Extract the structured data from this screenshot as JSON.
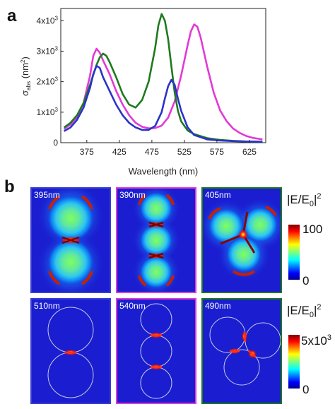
{
  "panel_a": {
    "label": "a",
    "chart_data": {
      "type": "line",
      "xlabel": "Wavelength (nm)",
      "ylabel_main": "σ",
      "ylabel_sub": "abs",
      "ylabel_unit_open": " (nm",
      "ylabel_unit_sup": "2",
      "ylabel_unit_close": ")",
      "xlim": [
        335,
        650
      ],
      "ylim": [
        0,
        4400
      ],
      "xticks": [
        "375",
        "425",
        "475",
        "525",
        "575",
        "625"
      ],
      "xtick_values": [
        375,
        425,
        475,
        525,
        575,
        625
      ],
      "yticks": [
        {
          "value": 0,
          "text": "0",
          "sup": ""
        },
        {
          "value": 1000,
          "text": "1x10",
          "sup": "3"
        },
        {
          "value": 2000,
          "text": "2x10",
          "sup": "3"
        },
        {
          "value": 3000,
          "text": "3x10",
          "sup": "3"
        },
        {
          "value": 4000,
          "text": "4x10",
          "sup": "3"
        }
      ],
      "series": [
        {
          "color": "#e339d6",
          "x": [
            340,
            350,
            360,
            370,
            380,
            385,
            390,
            395,
            400,
            410,
            420,
            430,
            440,
            450,
            460,
            470,
            480,
            490,
            500,
            510,
            520,
            530,
            535,
            540,
            545,
            550,
            560,
            570,
            580,
            590,
            600,
            610,
            620,
            630,
            645
          ],
          "y": [
            450,
            600,
            850,
            1300,
            2200,
            2850,
            3080,
            2950,
            2700,
            2250,
            1700,
            1250,
            900,
            650,
            520,
            470,
            480,
            560,
            820,
            1350,
            2200,
            3200,
            3650,
            3880,
            3800,
            3450,
            2500,
            1650,
            1050,
            700,
            460,
            320,
            220,
            160,
            110
          ]
        },
        {
          "color": "#1e7a1e",
          "x": [
            340,
            350,
            360,
            370,
            380,
            390,
            395,
            400,
            405,
            410,
            420,
            430,
            440,
            450,
            460,
            470,
            480,
            485,
            490,
            495,
            500,
            505,
            510,
            515,
            520,
            530,
            540,
            560,
            580,
            600,
            620,
            645
          ],
          "y": [
            500,
            650,
            900,
            1300,
            1900,
            2550,
            2800,
            2920,
            2850,
            2650,
            2150,
            1600,
            1250,
            1150,
            1400,
            2000,
            3100,
            3850,
            4220,
            4000,
            3400,
            2500,
            1650,
            1050,
            700,
            400,
            280,
            150,
            90,
            60,
            40,
            30
          ]
        },
        {
          "color": "#2a33c9",
          "x": [
            340,
            350,
            360,
            370,
            380,
            385,
            390,
            395,
            400,
            410,
            420,
            430,
            440,
            450,
            460,
            470,
            480,
            490,
            495,
            500,
            505,
            510,
            515,
            520,
            530,
            540,
            560,
            580,
            600,
            620,
            645
          ],
          "y": [
            380,
            500,
            750,
            1150,
            1800,
            2250,
            2520,
            2450,
            2150,
            1700,
            1250,
            900,
            650,
            500,
            420,
            420,
            550,
            1000,
            1450,
            1850,
            2060,
            1900,
            1450,
            1050,
            500,
            250,
            110,
            70,
            50,
            40,
            30
          ]
        }
      ]
    }
  },
  "panel_b": {
    "label": "b",
    "colorbar_top": {
      "title": "|E/E",
      "title_sub": "0",
      "title_close": "|",
      "title_sup": "2",
      "max": "100",
      "min": "0"
    },
    "colorbar_bottom": {
      "title": "|E/E",
      "title_sub": "0",
      "title_close": "|",
      "title_sup": "2",
      "max": "5x10",
      "max_sup": "3",
      "min": "0"
    },
    "maps": [
      {
        "wavelength": "395nm",
        "frame": "#3a3fd0"
      },
      {
        "wavelength": "390nm",
        "frame": "#e339d6"
      },
      {
        "wavelength": "405nm",
        "frame": "#1e7a1e"
      },
      {
        "wavelength": "510nm",
        "frame": "#3a3fd0"
      },
      {
        "wavelength": "540nm",
        "frame": "#e339d6"
      },
      {
        "wavelength": "490nm",
        "frame": "#1e7a1e"
      }
    ]
  }
}
